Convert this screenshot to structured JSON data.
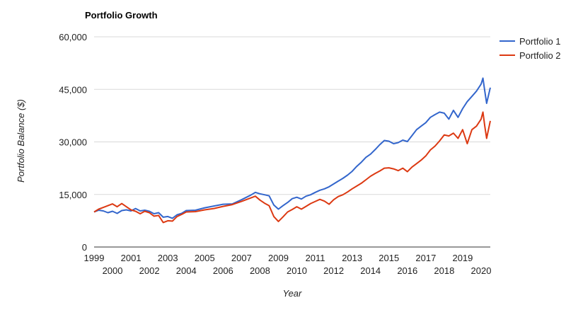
{
  "chart_data": {
    "type": "line",
    "title": "Portfolio Growth",
    "xlabel": "Year",
    "ylabel": "Portfolio Balance ($)",
    "ylim": [
      0,
      60000
    ],
    "xlim": [
      1999,
      2020.5
    ],
    "y_ticks": [
      0,
      15000,
      30000,
      45000,
      60000
    ],
    "y_tick_labels": [
      "0",
      "15,000",
      "30,000",
      "45,000",
      "60,000"
    ],
    "x_ticks": [
      1999,
      2000,
      2001,
      2002,
      2003,
      2004,
      2005,
      2006,
      2007,
      2008,
      2009,
      2010,
      2011,
      2012,
      2013,
      2014,
      2015,
      2016,
      2017,
      2018,
      2019,
      2020
    ],
    "x_tick_labels": [
      "1999",
      "2000",
      "2001",
      "2002",
      "2003",
      "2004",
      "2005",
      "2006",
      "2007",
      "2008",
      "2009",
      "2010",
      "2011",
      "2012",
      "2013",
      "2014",
      "2015",
      "2016",
      "2017",
      "2018",
      "2019",
      "2020"
    ],
    "grid": true,
    "legend_position": "top-right",
    "series": [
      {
        "name": "Portfolio 1",
        "color": "#3366cc",
        "x": [
          1999.0,
          1999.25,
          1999.5,
          1999.75,
          2000.0,
          2000.25,
          2000.5,
          2000.75,
          2001.0,
          2001.25,
          2001.5,
          2001.75,
          2002.0,
          2002.25,
          2002.5,
          2002.75,
          2003.0,
          2003.25,
          2003.5,
          2003.75,
          2004.0,
          2004.5,
          2005.0,
          2005.5,
          2006.0,
          2006.5,
          2007.0,
          2007.5,
          2007.75,
          2008.0,
          2008.25,
          2008.5,
          2008.75,
          2009.0,
          2009.25,
          2009.5,
          2009.75,
          2010.0,
          2010.25,
          2010.5,
          2010.75,
          2011.0,
          2011.25,
          2011.5,
          2011.75,
          2012.0,
          2012.25,
          2012.5,
          2012.75,
          2013.0,
          2013.25,
          2013.5,
          2013.75,
          2014.0,
          2014.25,
          2014.5,
          2014.75,
          2015.0,
          2015.25,
          2015.5,
          2015.75,
          2016.0,
          2016.25,
          2016.5,
          2016.75,
          2017.0,
          2017.25,
          2017.5,
          2017.75,
          2018.0,
          2018.25,
          2018.5,
          2018.75,
          2019.0,
          2019.25,
          2019.5,
          2019.75,
          2020.0,
          2020.1,
          2020.2,
          2020.3,
          2020.5
        ],
        "y": [
          10000,
          10500,
          10300,
          9800,
          10200,
          9600,
          10400,
          10600,
          10300,
          11000,
          10300,
          10500,
          10200,
          9500,
          9800,
          8500,
          8700,
          8200,
          9200,
          9600,
          10400,
          10500,
          11200,
          11700,
          12200,
          12300,
          13500,
          14800,
          15600,
          15200,
          14900,
          14600,
          12000,
          10800,
          11800,
          12700,
          13800,
          14200,
          13700,
          14500,
          14900,
          15600,
          16200,
          16600,
          17200,
          18000,
          18800,
          19600,
          20500,
          21600,
          23000,
          24200,
          25600,
          26500,
          27800,
          29200,
          30400,
          30200,
          29500,
          29800,
          30500,
          30100,
          31800,
          33500,
          34500,
          35500,
          37000,
          37800,
          38500,
          38200,
          36500,
          39000,
          37000,
          39500,
          41500,
          43000,
          44500,
          46500,
          48200,
          44500,
          41000,
          45500
        ]
      },
      {
        "name": "Portfolio 2",
        "color": "#dc3912",
        "x": [
          1999.0,
          1999.25,
          1999.5,
          1999.75,
          2000.0,
          2000.25,
          2000.5,
          2000.75,
          2001.0,
          2001.25,
          2001.5,
          2001.75,
          2002.0,
          2002.25,
          2002.5,
          2002.75,
          2003.0,
          2003.25,
          2003.5,
          2003.75,
          2004.0,
          2004.5,
          2005.0,
          2005.5,
          2006.0,
          2006.5,
          2007.0,
          2007.5,
          2007.75,
          2008.0,
          2008.25,
          2008.5,
          2008.75,
          2009.0,
          2009.25,
          2009.5,
          2009.75,
          2010.0,
          2010.25,
          2010.5,
          2010.75,
          2011.0,
          2011.25,
          2011.5,
          2011.75,
          2012.0,
          2012.25,
          2012.5,
          2012.75,
          2013.0,
          2013.25,
          2013.5,
          2013.75,
          2014.0,
          2014.25,
          2014.5,
          2014.75,
          2015.0,
          2015.25,
          2015.5,
          2015.75,
          2016.0,
          2016.25,
          2016.5,
          2016.75,
          2017.0,
          2017.25,
          2017.5,
          2017.75,
          2018.0,
          2018.25,
          2018.5,
          2018.75,
          2019.0,
          2019.25,
          2019.5,
          2019.75,
          2020.0,
          2020.1,
          2020.2,
          2020.3,
          2020.5
        ],
        "y": [
          10000,
          10800,
          11300,
          11800,
          12300,
          11500,
          12400,
          11500,
          10600,
          10200,
          9500,
          10200,
          9800,
          8800,
          9000,
          7000,
          7500,
          7400,
          8700,
          9300,
          10000,
          10100,
          10600,
          11000,
          11600,
          12100,
          13000,
          14000,
          14500,
          13400,
          12500,
          11800,
          8700,
          7300,
          8600,
          10000,
          10700,
          11500,
          10800,
          11600,
          12400,
          13000,
          13600,
          13100,
          12200,
          13500,
          14400,
          14900,
          15700,
          16600,
          17400,
          18200,
          19200,
          20200,
          21000,
          21700,
          22500,
          22600,
          22300,
          21800,
          22500,
          21500,
          22800,
          23800,
          24800,
          26000,
          27700,
          28800,
          30300,
          32000,
          31700,
          32500,
          31000,
          33500,
          29500,
          33500,
          34500,
          36500,
          38500,
          34500,
          31000,
          36000
        ]
      }
    ]
  }
}
